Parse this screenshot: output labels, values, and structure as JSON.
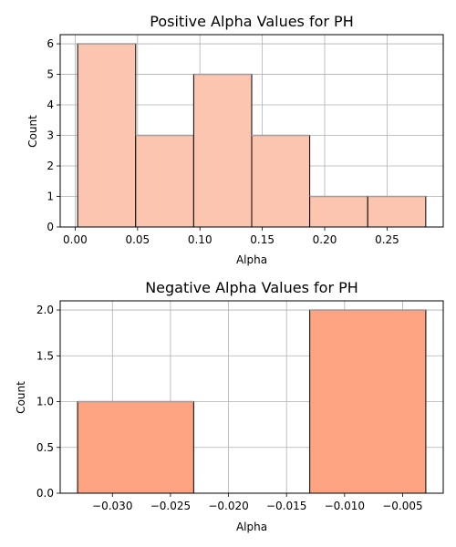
{
  "chart_data": [
    {
      "type": "bar",
      "title": "Positive Alpha Values for PH",
      "xlabel": "Alpha",
      "ylabel": "Count",
      "bin_edges": [
        0.002,
        0.0485,
        0.095,
        0.1415,
        0.188,
        0.2345,
        0.281
      ],
      "values": [
        6,
        3,
        5,
        3,
        1,
        1
      ],
      "xlim": [
        -0.012,
        0.295
      ],
      "ylim": [
        0,
        6.3
      ],
      "xticks": [
        0.0,
        0.05,
        0.1,
        0.15,
        0.2,
        0.25
      ],
      "xtick_labels": [
        "0.00",
        "0.05",
        "0.10",
        "0.15",
        "0.20",
        "0.25"
      ],
      "yticks": [
        0,
        1,
        2,
        3,
        4,
        5,
        6
      ],
      "ytick_labels": [
        "0",
        "1",
        "2",
        "3",
        "4",
        "5",
        "6"
      ],
      "grid": true,
      "bar_color": "#fcc5b0",
      "bar_edge_color": "#000000",
      "bar_top_edge_color": "#a0a0a0",
      "grid_color": "#b0b0b0"
    },
    {
      "type": "bar",
      "title": "Negative Alpha Values for PH",
      "xlabel": "Alpha",
      "ylabel": "Count",
      "bin_edges": [
        -0.033,
        -0.023,
        -0.013,
        -0.003
      ],
      "values": [
        1,
        0,
        2
      ],
      "xlim": [
        -0.0345,
        -0.0015
      ],
      "ylim": [
        0,
        2.1
      ],
      "xticks": [
        -0.03,
        -0.025,
        -0.02,
        -0.015,
        -0.01,
        -0.005
      ],
      "xtick_labels": [
        "−0.030",
        "−0.025",
        "−0.020",
        "−0.015",
        "−0.010",
        "−0.005"
      ],
      "yticks": [
        0,
        0.5,
        1.0,
        1.5,
        2.0
      ],
      "ytick_labels": [
        "0.0",
        "0.5",
        "1.0",
        "1.5",
        "2.0"
      ],
      "grid": true,
      "bar_color": "#fca382",
      "bar_edge_color": "#000000",
      "bar_top_edge_color": "#a0a0a0",
      "grid_color": "#b0b0b0"
    }
  ]
}
